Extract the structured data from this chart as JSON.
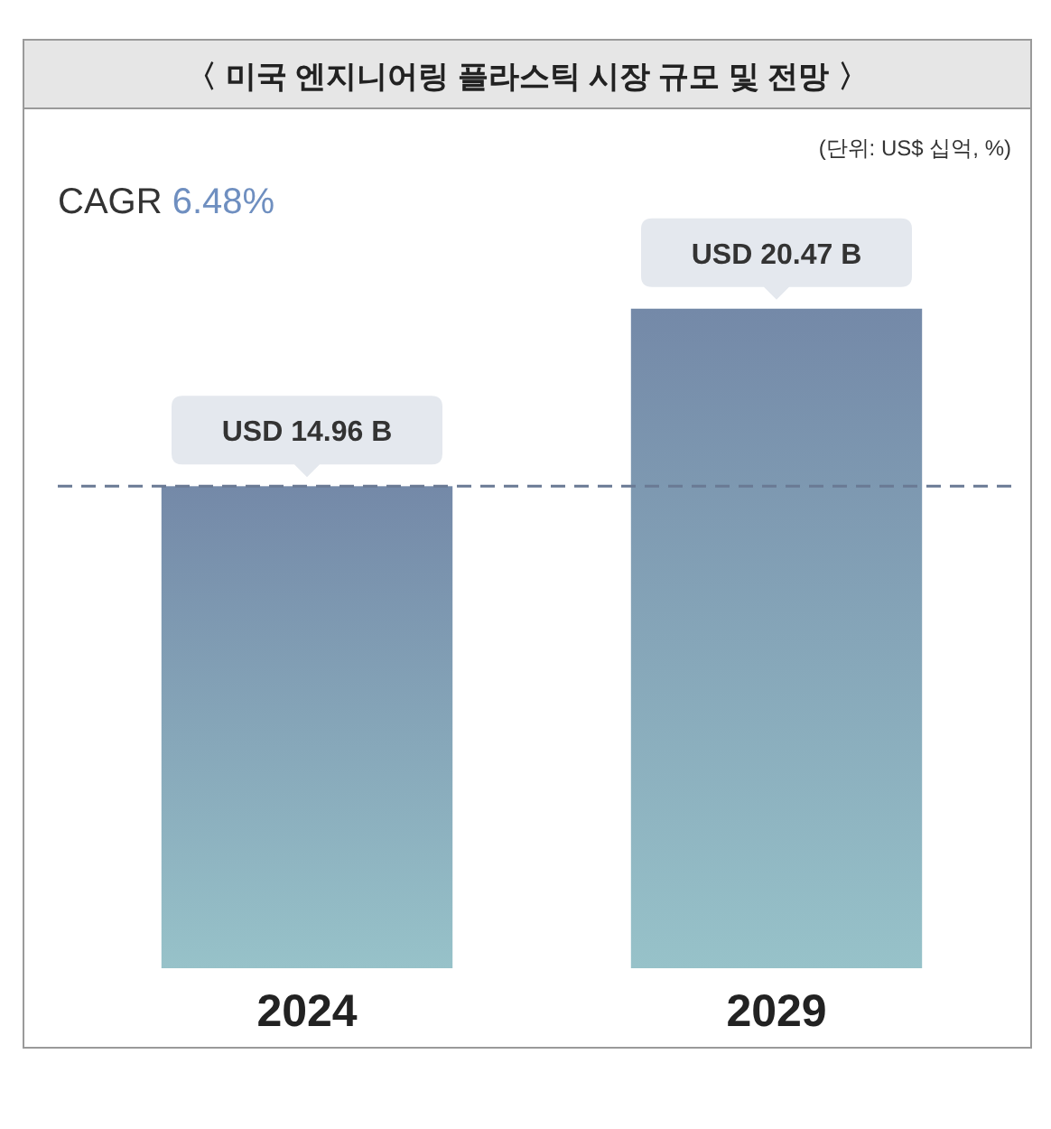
{
  "chart_data": {
    "type": "bar",
    "title": "〈 미국 엔지니어링 플라스틱 시장 규모 및 전망 〉",
    "subtitle": "(단위: US$ 십억, %)",
    "annotations": [
      "CAGR 6.48%"
    ],
    "categories": [
      "2024",
      "2029"
    ],
    "values": [
      14.96,
      20.47
    ],
    "value_labels": [
      "USD 14.96 B",
      "USD 20.47 B"
    ],
    "color": "#7f96b8",
    "ref_lines": [
      {
        "axis": "y",
        "value": 14.96,
        "color": "#6a7a94",
        "line_style": "dashed"
      }
    ]
  }
}
